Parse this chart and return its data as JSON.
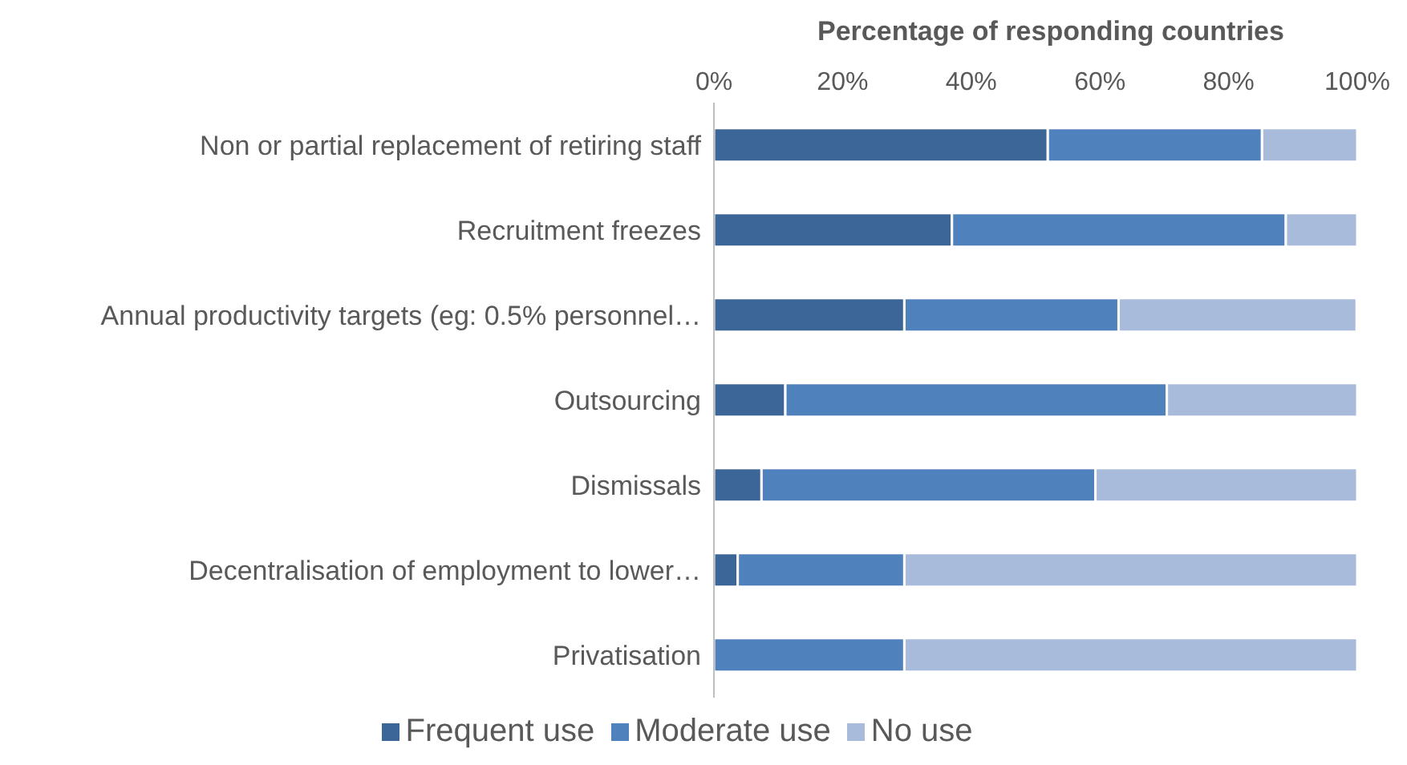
{
  "chart_data": {
    "type": "bar",
    "orientation": "horizontal",
    "stacked": true,
    "xlabel": "Percentage of responding countries",
    "categories": [
      "Non or partial replacement of retiring staff",
      "Recruitment freezes",
      "Annual productivity targets (eg: 0.5% personnel…",
      "Outsourcing",
      "Dismissals",
      "Decentralisation of employment to lower…",
      "Privatisation"
    ],
    "series": [
      {
        "name": "Frequent use",
        "color": "#3d6698",
        "values": [
          51.9,
          37.0,
          29.6,
          11.1,
          7.4,
          3.7,
          0
        ]
      },
      {
        "name": "Moderate use",
        "color": "#4f81bd",
        "values": [
          33.3,
          51.9,
          33.3,
          59.3,
          51.9,
          25.9,
          29.6
        ]
      },
      {
        "name": "No use",
        "color": "#a9bbda",
        "values": [
          14.8,
          11.1,
          37.0,
          29.6,
          40.7,
          70.4,
          70.4
        ]
      }
    ],
    "xlim": [
      0,
      100
    ],
    "xticks": [
      {
        "value": 0,
        "label": "0%"
      },
      {
        "value": 20,
        "label": "20%"
      },
      {
        "value": 40,
        "label": "40%"
      },
      {
        "value": 60,
        "label": "60%"
      },
      {
        "value": 80,
        "label": "80%"
      },
      {
        "value": 100,
        "label": "100%"
      }
    ],
    "grid": false,
    "legend": "bottom"
  }
}
